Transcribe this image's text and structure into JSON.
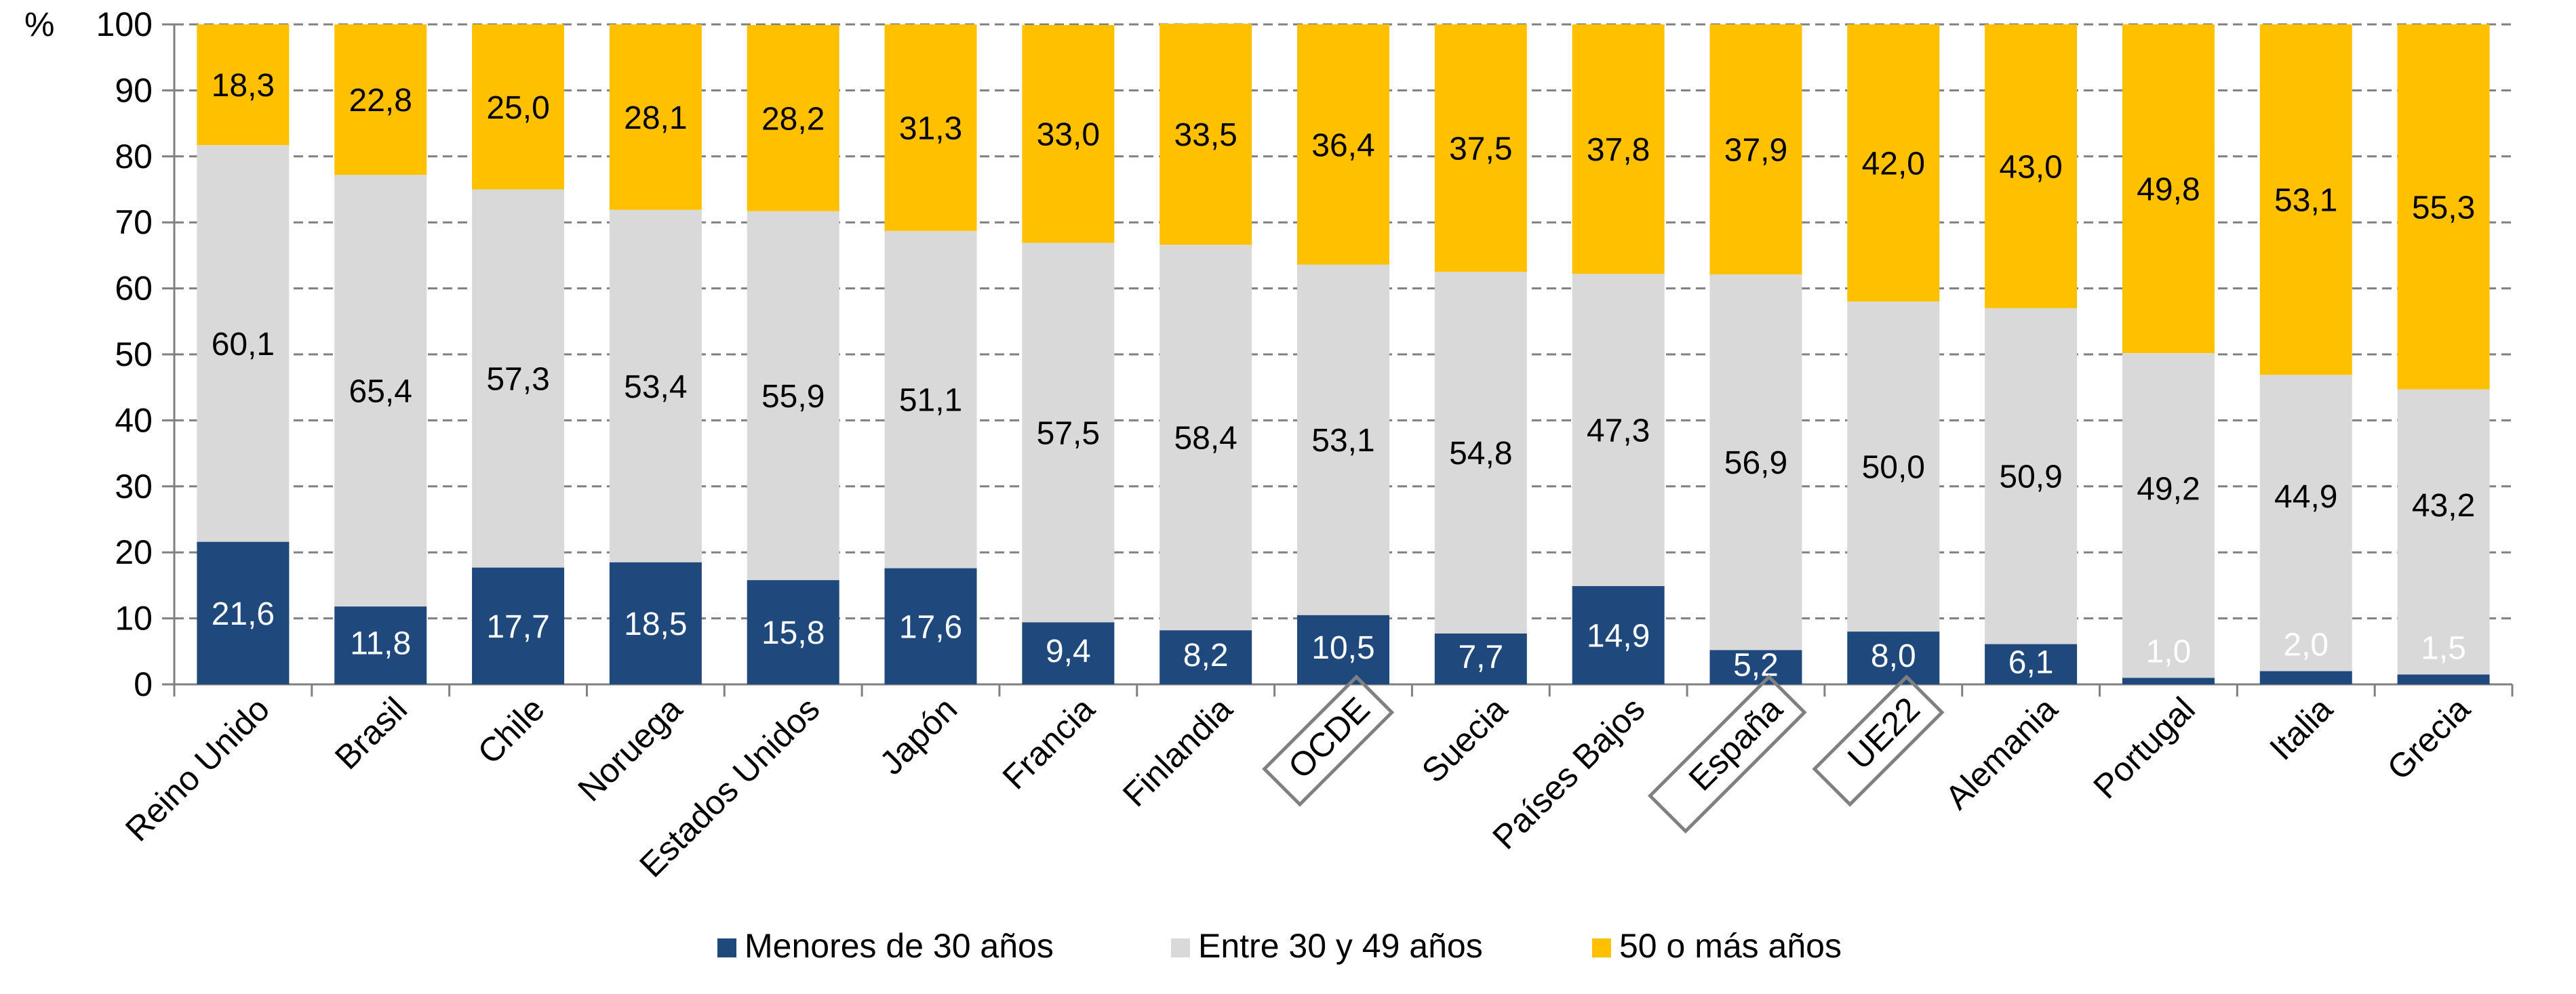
{
  "chart_data": {
    "type": "bar",
    "stacked": true,
    "y_unit_label": "%",
    "ylim": [
      0,
      100
    ],
    "y_ticks": [
      0,
      10,
      20,
      30,
      40,
      50,
      60,
      70,
      80,
      90,
      100
    ],
    "grid": "horizontal-dashed",
    "legend_position": "bottom",
    "categories": [
      "Reino Unido",
      "Brasil",
      "Chile",
      "Noruega",
      "Estados Unidos",
      "Japón",
      "Francia",
      "Finlandia",
      "OCDE",
      "Suecia",
      "Países Bajos",
      "España",
      "UE22",
      "Alemania",
      "Portugal",
      "Italia",
      "Grecia"
    ],
    "highlighted_categories": [
      "OCDE",
      "España",
      "UE22"
    ],
    "series": [
      {
        "name": "Menores de 30 años",
        "color": "#1F497D",
        "label_color": "#FFFFFF",
        "values": [
          21.6,
          11.8,
          17.7,
          18.5,
          15.8,
          17.6,
          9.4,
          8.2,
          10.5,
          7.7,
          14.9,
          5.2,
          8.0,
          6.1,
          1.0,
          2.0,
          1.5
        ],
        "labels": [
          "21,6",
          "11,8",
          "17,7",
          "18,5",
          "15,8",
          "17,6",
          "9,4",
          "8,2",
          "10,5",
          "7,7",
          "14,9",
          "5,2",
          "8,0",
          "6,1",
          "1,0",
          "2,0",
          "1,5"
        ]
      },
      {
        "name": "Entre 30 y 49 años",
        "color": "#D9D9D9",
        "label_color": "#000000",
        "values": [
          60.1,
          65.4,
          57.3,
          53.4,
          55.9,
          51.1,
          57.5,
          58.4,
          53.1,
          54.8,
          47.3,
          56.9,
          50.0,
          50.9,
          49.2,
          44.9,
          43.2
        ],
        "labels": [
          "60,1",
          "65,4",
          "57,3",
          "53,4",
          "55,9",
          "51,1",
          "57,5",
          "58,4",
          "53,1",
          "54,8",
          "47,3",
          "56,9",
          "50,0",
          "50,9",
          "49,2",
          "44,9",
          "43,2"
        ]
      },
      {
        "name": "50 o más años",
        "color": "#FFC000",
        "label_color": "#000000",
        "values": [
          18.3,
          22.8,
          25.0,
          28.1,
          28.2,
          31.3,
          33.0,
          33.5,
          36.4,
          37.5,
          37.8,
          37.9,
          42.0,
          43.0,
          49.8,
          53.1,
          55.3
        ],
        "labels": [
          "18,3",
          "22,8",
          "25,0",
          "28,1",
          "28,2",
          "31,3",
          "33,0",
          "33,5",
          "36,4",
          "37,5",
          "37,8",
          "37,9",
          "42,0",
          "43,0",
          "49,8",
          "53,1",
          "55,3"
        ]
      }
    ]
  }
}
